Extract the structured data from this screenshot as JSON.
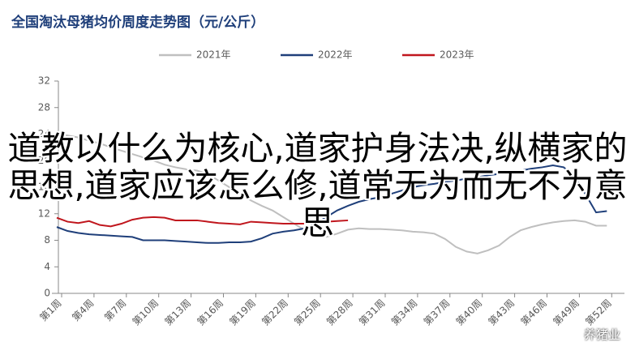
{
  "chart_data": {
    "type": "line",
    "title": "全国淘汰母猪均价周度走势图（元/公斤）",
    "categories": [
      "第1周",
      null,
      null,
      "第4周",
      null,
      null,
      "第7周",
      null,
      null,
      "第10周",
      null,
      null,
      "第13周",
      null,
      null,
      "第16周",
      null,
      null,
      "第19周",
      null,
      null,
      "第22周",
      null,
      null,
      "第25周",
      null,
      null,
      "第28周",
      null,
      null,
      "第31周",
      null,
      null,
      "第34周",
      null,
      null,
      "第37周",
      null,
      null,
      "第40周",
      null,
      null,
      "第43周",
      null,
      null,
      "第46周",
      null,
      null,
      "第49周",
      null,
      null,
      "第52周"
    ],
    "series": [
      {
        "name": "2021年",
        "color": "#bfbfbf",
        "values": [
          24,
          23.8,
          23.5,
          23,
          22.6,
          22,
          21.5,
          21,
          20.5,
          20,
          19.4,
          19,
          18.7,
          18.5,
          18,
          17,
          16,
          15,
          14,
          13.2,
          12.5,
          11.5,
          10.5,
          9.5,
          8.8,
          8.5,
          9,
          9.6,
          9.8,
          9.7,
          9.7,
          9.6,
          9.5,
          9.3,
          9.2,
          9,
          8.2,
          7,
          6.3,
          6,
          6.5,
          7.2,
          8.5,
          9.5,
          10,
          10.4,
          10.7,
          10.9,
          11,
          10.8,
          10.2,
          10.2
        ]
      },
      {
        "name": "2022年",
        "color": "#1f3f7a",
        "values": [
          10,
          9.4,
          9.1,
          8.9,
          8.8,
          8.7,
          8.6,
          8.5,
          8,
          8,
          8,
          7.9,
          7.8,
          7.7,
          7.6,
          7.6,
          7.7,
          7.7,
          7.8,
          8.3,
          9,
          9.3,
          9.5,
          9.8,
          10.5,
          11.5,
          12.5,
          13.2,
          13.8,
          14.2,
          14.5,
          15,
          15.5,
          16,
          16.3,
          16.5,
          16.8,
          17,
          17.3,
          17.5,
          17.8,
          18,
          18.3,
          18.5,
          18.8,
          19,
          19.3,
          19,
          17.5,
          15,
          12.2,
          12.4
        ]
      },
      {
        "name": "2023年",
        "color": "#c0161d",
        "values": [
          11.4,
          10.8,
          10.6,
          10.9,
          10.3,
          10.1,
          10.5,
          11.1,
          11.4,
          11.5,
          11.4,
          11,
          11,
          11,
          10.8,
          10.6,
          10.5,
          10.4,
          10.8,
          10.7,
          10.6,
          10.5,
          10.5,
          10.5,
          10.6,
          10.8,
          10.9,
          11,
          null,
          null,
          null,
          null,
          null,
          null,
          null,
          null,
          null,
          null,
          null,
          null,
          null,
          null,
          null,
          null,
          null,
          null,
          null,
          null,
          null,
          null,
          null,
          null
        ]
      }
    ],
    "ylim": [
      0,
      32
    ],
    "yticks": [
      0,
      4,
      8,
      12,
      16,
      20,
      24,
      28,
      32
    ],
    "grid": false,
    "legend": "top"
  },
  "overlay": {
    "text": "道教以什么为核心,道家护身法决,纵横家的思想,道家应该怎么修,道常无为而无不为意思"
  },
  "watermark": "养猪业"
}
